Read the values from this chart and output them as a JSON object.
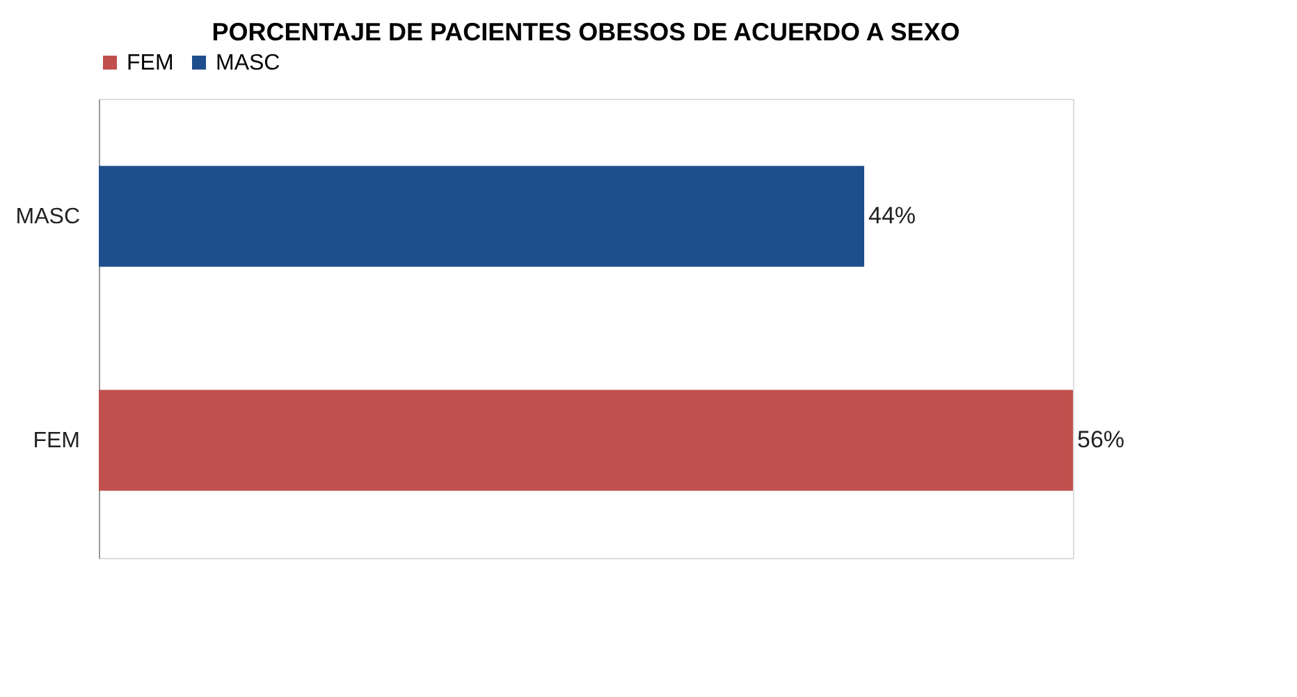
{
  "chart_data": {
    "type": "bar",
    "orientation": "horizontal",
    "title": "PORCENTAJE DE PACIENTES OBESOS DE ACUERDO A SEXO",
    "categories": [
      "MASC",
      "FEM"
    ],
    "series": [
      {
        "name": "FEM",
        "color": "#c0504d",
        "values": [
          null,
          56
        ],
        "value_labels": [
          null,
          "56%"
        ]
      },
      {
        "name": "MASC",
        "color": "#1f4e8c",
        "values": [
          44,
          null
        ],
        "value_labels": [
          "44%",
          null
        ]
      }
    ],
    "legend": "top",
    "grid": false
  }
}
